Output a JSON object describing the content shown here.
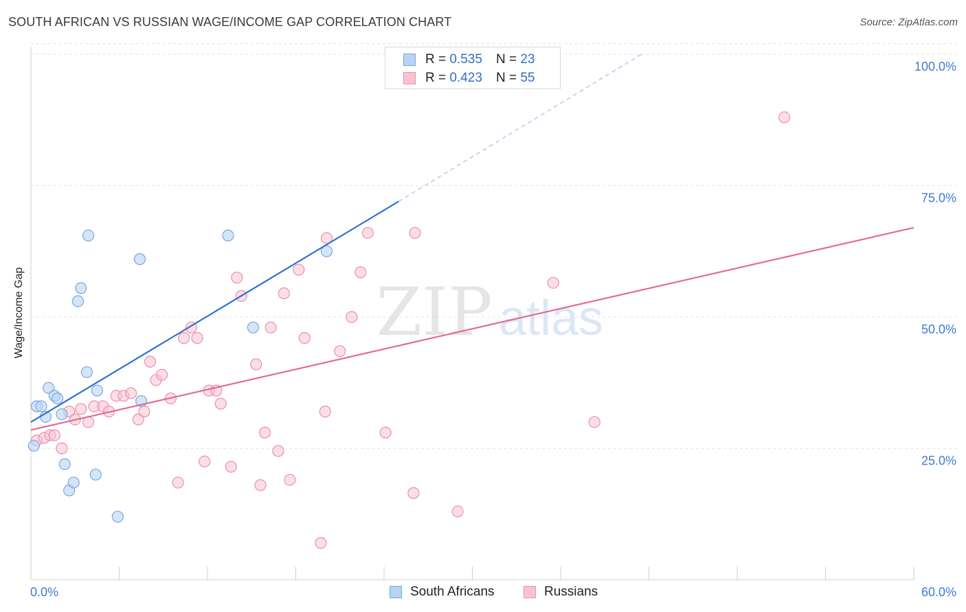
{
  "title": "SOUTH AFRICAN VS RUSSIAN WAGE/INCOME GAP CORRELATION CHART",
  "source": "Source: ZipAtlas.com",
  "watermark": {
    "zip": "ZIP",
    "atlas": "atlas"
  },
  "legend": {
    "rows": [
      {
        "r_label": "R =",
        "r_value": "0.535",
        "n_label": "N =",
        "n_value": "23"
      },
      {
        "r_label": "R =",
        "r_value": "0.423",
        "n_label": "N =",
        "n_value": "55"
      }
    ]
  },
  "bottom_legend": {
    "series1": "South Africans",
    "series2": "Russians"
  },
  "colors": {
    "blue_fill": "#b8d3f3",
    "blue_stroke": "#7aa6de",
    "blue_line": "#2f72cc",
    "pink_fill": "#f8c2d2",
    "pink_stroke": "#e891ab",
    "pink_line": "#e46a93",
    "tick_label": "#3f7ad0"
  },
  "chart_data": {
    "type": "scatter",
    "title": "SOUTH AFRICAN VS RUSSIAN WAGE/INCOME GAP CORRELATION CHART",
    "xlabel": "",
    "ylabel": "Wage/Income Gap",
    "xlim": [
      0,
      60
    ],
    "ylim": [
      0,
      102
    ],
    "x_tick_labels": [
      "0.0%",
      "60.0%"
    ],
    "y_ticks": [
      25,
      50,
      75,
      100
    ],
    "y_tick_labels": [
      "25.0%",
      "50.0%",
      "75.0%",
      "100.0%"
    ],
    "grid": true,
    "series": [
      {
        "name": "South Africans",
        "R": 0.535,
        "N": 23,
        "trend": {
          "x_start": 0,
          "y_start": 30,
          "x_solid_end": 25,
          "y_solid_end": 72,
          "x_dash_end": 41.5,
          "y_dash_end": 100
        },
        "points": [
          [
            0.2,
            25.5
          ],
          [
            0.4,
            33.0
          ],
          [
            0.7,
            33.0
          ],
          [
            1.0,
            31.0
          ],
          [
            1.2,
            36.5
          ],
          [
            1.6,
            35.0
          ],
          [
            1.8,
            34.5
          ],
          [
            2.1,
            31.5
          ],
          [
            2.3,
            22.0
          ],
          [
            2.6,
            17.0
          ],
          [
            2.9,
            18.5
          ],
          [
            3.2,
            53.0
          ],
          [
            3.4,
            55.5
          ],
          [
            3.8,
            39.5
          ],
          [
            3.9,
            65.5
          ],
          [
            4.4,
            20.0
          ],
          [
            4.5,
            36.0
          ],
          [
            5.9,
            12.0
          ],
          [
            7.4,
            61.0
          ],
          [
            7.5,
            34.0
          ],
          [
            13.4,
            65.5
          ],
          [
            15.1,
            48.0
          ],
          [
            20.1,
            62.5
          ]
        ]
      },
      {
        "name": "Russians",
        "R": 0.423,
        "N": 55,
        "trend": {
          "x_start": 0,
          "y_start": 28.5,
          "x_end": 60,
          "y_end": 67
        },
        "points": [
          [
            0.4,
            26.5
          ],
          [
            0.9,
            27.0
          ],
          [
            1.3,
            27.5
          ],
          [
            1.6,
            27.5
          ],
          [
            2.1,
            25.0
          ],
          [
            2.6,
            32.0
          ],
          [
            3.0,
            30.5
          ],
          [
            3.4,
            32.5
          ],
          [
            3.9,
            30.0
          ],
          [
            4.3,
            33.0
          ],
          [
            4.9,
            33.0
          ],
          [
            5.3,
            32.0
          ],
          [
            5.8,
            35.0
          ],
          [
            6.3,
            35.0
          ],
          [
            6.8,
            35.5
          ],
          [
            7.3,
            30.5
          ],
          [
            7.7,
            32.0
          ],
          [
            8.1,
            41.5
          ],
          [
            8.5,
            38.0
          ],
          [
            8.9,
            39.0
          ],
          [
            9.5,
            34.5
          ],
          [
            10.0,
            18.5
          ],
          [
            10.4,
            46.0
          ],
          [
            10.9,
            48.0
          ],
          [
            11.3,
            46.0
          ],
          [
            11.8,
            22.5
          ],
          [
            12.1,
            36.0
          ],
          [
            12.6,
            36.0
          ],
          [
            12.9,
            33.5
          ],
          [
            13.6,
            21.5
          ],
          [
            14.0,
            57.5
          ],
          [
            14.3,
            54.0
          ],
          [
            15.3,
            41.0
          ],
          [
            15.6,
            18.0
          ],
          [
            15.9,
            28.0
          ],
          [
            16.3,
            48.0
          ],
          [
            16.8,
            24.5
          ],
          [
            17.2,
            54.5
          ],
          [
            17.6,
            19.0
          ],
          [
            18.2,
            59.0
          ],
          [
            18.6,
            46.0
          ],
          [
            19.7,
            7.0
          ],
          [
            20.0,
            32.0
          ],
          [
            20.1,
            65.0
          ],
          [
            21.0,
            43.5
          ],
          [
            21.8,
            50.0
          ],
          [
            22.4,
            58.5
          ],
          [
            22.9,
            66.0
          ],
          [
            24.1,
            28.0
          ],
          [
            26.0,
            16.5
          ],
          [
            26.1,
            66.0
          ],
          [
            29.0,
            13.0
          ],
          [
            35.5,
            56.5
          ],
          [
            38.3,
            30.0
          ],
          [
            51.2,
            88.0
          ]
        ]
      }
    ]
  }
}
